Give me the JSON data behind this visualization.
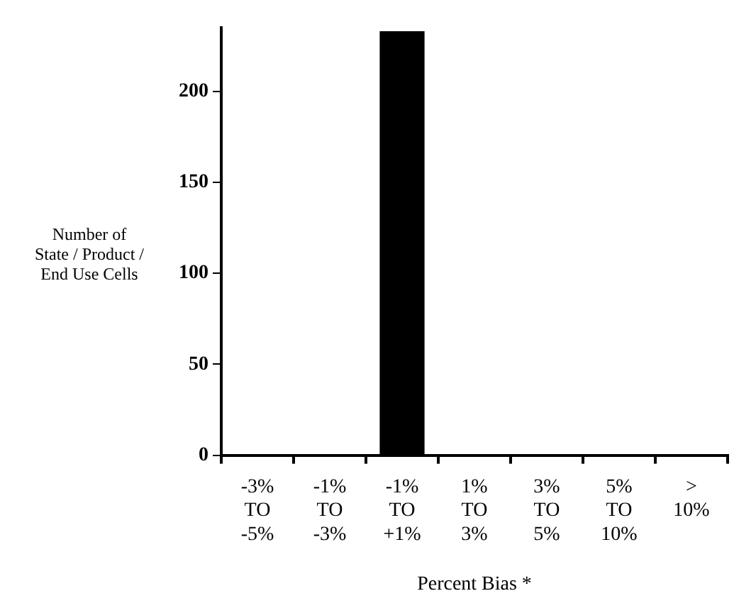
{
  "chart_data": {
    "type": "bar",
    "xlabel": "Percent Bias *",
    "ylabel": "Number of\nState / Product /\nEnd Use Cells",
    "categories": [
      "-3%\nTO\n-5%",
      "-1%\nTO\n-3%",
      "-1%\nTO\n+1%",
      "1%\nTO\n3%",
      "3%\nTO\n5%",
      "5%\nTO\n10%",
      ">\n10%"
    ],
    "values": [
      0,
      0,
      233,
      0,
      0,
      0,
      0
    ],
    "color": "#000000",
    "ylim": [
      0,
      235
    ],
    "yticks": [
      0,
      50,
      100,
      150,
      200
    ],
    "grid": false,
    "legend": false
  }
}
